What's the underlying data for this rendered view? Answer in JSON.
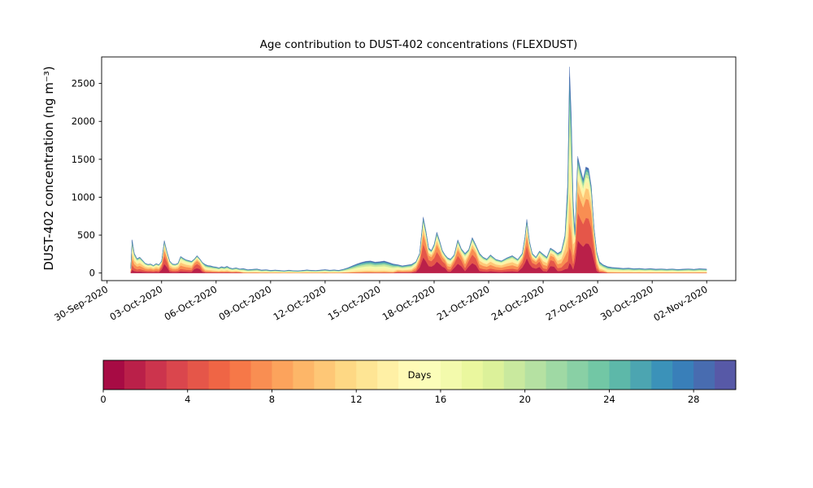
{
  "chart": {
    "title": "Age contribution to DUST-402 concentrations (FLEXDUST)",
    "ylabel": "DUST-402 concentration (ng m⁻³)"
  },
  "chart_data": {
    "type": "area",
    "subtype": "stacked-area-by-particle-age",
    "title": "Age contribution to DUST-402 concentrations (FLEXDUST)",
    "xlabel": "",
    "ylabel": "DUST-402 concentration (ng m-3)",
    "x_unit": "days since 30-Sep-2020 00:00",
    "xlim": [
      -0.3,
      34.6
    ],
    "ylim": [
      -100,
      2850
    ],
    "yticks": [
      0,
      500,
      1000,
      1500,
      2000,
      2500
    ],
    "xticks": {
      "positions": [
        0,
        3,
        6,
        9,
        12,
        15,
        18,
        21,
        24,
        27,
        30,
        33
      ],
      "labels": [
        "30-Sep-2020",
        "03-Oct-2020",
        "06-Oct-2020",
        "09-Oct-2020",
        "12-Oct-2020",
        "15-Oct-2020",
        "18-Oct-2020",
        "21-Oct-2020",
        "24-Oct-2020",
        "27-Oct-2020",
        "30-Oct-2020",
        "02-Nov-2020"
      ]
    },
    "grid": false,
    "colormap_anchors": [
      "#9e0142",
      "#d53e4f",
      "#f46d43",
      "#fdae61",
      "#fee08b",
      "#ffffbf",
      "#e6f598",
      "#abdda4",
      "#66c2a5",
      "#3288bd",
      "#5e4fa2"
    ],
    "age_bins": {
      "count": 10,
      "edges_days": [
        0,
        3,
        6,
        9,
        12,
        15,
        18,
        21,
        24,
        27,
        30
      ]
    },
    "profiles": {
      "f": [
        0.28,
        0.24,
        0.18,
        0.1,
        0.06,
        0.04,
        0.03,
        0.03,
        0.02,
        0.02
      ],
      "r": [
        0.1,
        0.15,
        0.2,
        0.18,
        0.13,
        0.09,
        0.06,
        0.04,
        0.03,
        0.02
      ],
      "m": [
        0.05,
        0.08,
        0.12,
        0.15,
        0.15,
        0.13,
        0.11,
        0.09,
        0.07,
        0.05
      ],
      "a": [
        0.01,
        0.02,
        0.05,
        0.12,
        0.18,
        0.18,
        0.15,
        0.12,
        0.1,
        0.07
      ],
      "o": [
        0.01,
        0.02,
        0.03,
        0.05,
        0.08,
        0.12,
        0.16,
        0.18,
        0.19,
        0.16
      ]
    },
    "points": {
      "x": [
        1.3,
        1.38,
        1.5,
        1.65,
        1.8,
        1.95,
        2.1,
        2.25,
        2.4,
        2.55,
        2.7,
        2.85,
        3.0,
        3.15,
        3.3,
        3.45,
        3.6,
        3.75,
        3.9,
        4.05,
        4.2,
        4.35,
        4.5,
        4.65,
        4.8,
        4.95,
        5.1,
        5.25,
        5.4,
        5.55,
        5.7,
        5.85,
        6.0,
        6.15,
        6.3,
        6.45,
        6.6,
        6.75,
        6.9,
        7.1,
        7.3,
        7.5,
        7.75,
        8.0,
        8.25,
        8.5,
        8.75,
        9.0,
        9.25,
        9.5,
        9.75,
        10.0,
        10.25,
        10.5,
        10.75,
        11.0,
        11.25,
        11.5,
        11.75,
        12.0,
        12.25,
        12.5,
        12.75,
        13.0,
        13.25,
        13.5,
        13.75,
        14.0,
        14.25,
        14.5,
        14.75,
        15.0,
        15.25,
        15.5,
        15.75,
        16.0,
        16.25,
        16.5,
        16.75,
        17.0,
        17.2,
        17.4,
        17.55,
        17.7,
        17.85,
        18.0,
        18.15,
        18.3,
        18.45,
        18.6,
        18.75,
        18.9,
        19.1,
        19.3,
        19.5,
        19.7,
        19.9,
        20.1,
        20.3,
        20.5,
        20.7,
        20.9,
        21.1,
        21.4,
        21.7,
        22.0,
        22.3,
        22.6,
        22.85,
        23.0,
        23.1,
        23.25,
        23.4,
        23.6,
        23.8,
        24.0,
        24.2,
        24.4,
        24.6,
        24.8,
        25.0,
        25.2,
        25.35,
        25.45,
        25.55,
        25.65,
        25.75,
        25.9,
        26.05,
        26.2,
        26.35,
        26.5,
        26.65,
        26.8,
        26.95,
        27.1,
        27.3,
        27.55,
        27.8,
        28.1,
        28.4,
        28.7,
        29.0,
        29.3,
        29.6,
        29.9,
        30.2,
        30.5,
        30.8,
        31.1,
        31.4,
        31.7,
        32.0,
        32.3,
        32.6,
        32.9,
        33.0
      ],
      "total": [
        60,
        440,
        260,
        190,
        210,
        170,
        130,
        115,
        120,
        100,
        125,
        110,
        160,
        430,
        280,
        160,
        120,
        115,
        130,
        220,
        195,
        175,
        165,
        155,
        185,
        230,
        190,
        140,
        115,
        100,
        95,
        85,
        80,
        70,
        85,
        75,
        90,
        70,
        60,
        70,
        55,
        60,
        45,
        50,
        55,
        40,
        45,
        35,
        40,
        35,
        30,
        38,
        32,
        30,
        35,
        42,
        36,
        34,
        40,
        46,
        38,
        42,
        36,
        50,
        70,
        95,
        120,
        140,
        155,
        160,
        145,
        150,
        158,
        140,
        120,
        110,
        95,
        105,
        115,
        150,
        260,
        740,
        560,
        330,
        300,
        380,
        540,
        430,
        300,
        240,
        200,
        185,
        240,
        440,
        320,
        260,
        310,
        470,
        370,
        260,
        210,
        185,
        240,
        180,
        160,
        200,
        230,
        180,
        260,
        480,
        710,
        420,
        260,
        210,
        290,
        250,
        210,
        330,
        300,
        260,
        290,
        500,
        1200,
        2720,
        2100,
        950,
        520,
        1540,
        1380,
        1240,
        1400,
        1380,
        1150,
        600,
        280,
        150,
        110,
        85,
        75,
        70,
        62,
        66,
        58,
        62,
        55,
        60,
        52,
        56,
        50,
        55,
        48,
        52,
        56,
        50,
        58,
        54,
        52
      ],
      "profile_codes": "rrrrrrrrrrrrfffrrrrrrrrrfffrmmmmmmmmmmmmmaaaaaaaaaaaaaaaaaaaaaaaaaaaaaaaaaammmmrffffffffffrrfffrfffrrrrrrrrrfffffffrrffrrrmmmmffffffffrmmaaaaaaaaaaaaaaaaaaaa"
    },
    "colorbar": {
      "label": "Days",
      "min": 0,
      "max": 30,
      "ticks": [
        0,
        4,
        8,
        12,
        16,
        20,
        24,
        28
      ],
      "discrete_cells": 30,
      "orientation": "horizontal"
    },
    "background": "#ffffff"
  }
}
